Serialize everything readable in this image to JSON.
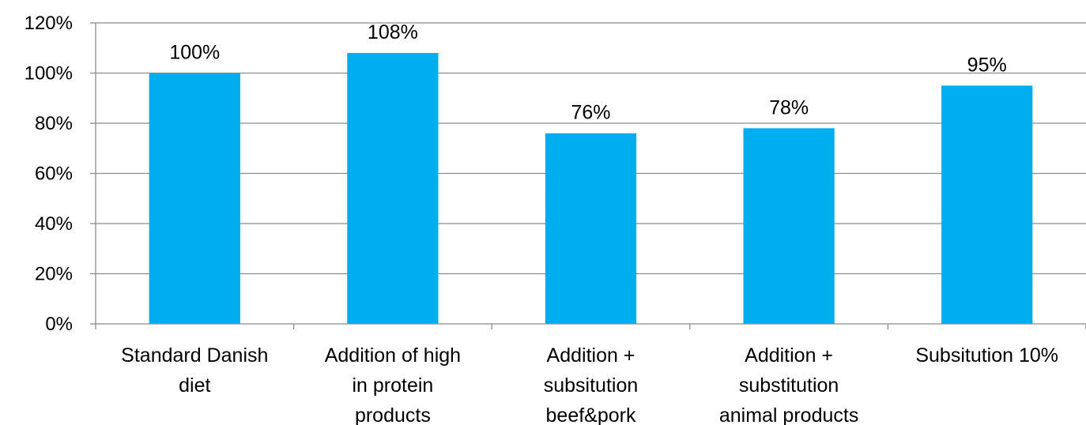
{
  "chart_data": {
    "type": "bar",
    "categories": [
      [
        "Standard Danish",
        "diet"
      ],
      [
        "Addition of high",
        "in protein",
        "products"
      ],
      [
        "Addition +",
        "subsitution",
        "beef&pork"
      ],
      [
        "Addition +",
        "substitution",
        "animal products"
      ],
      [
        "Subsitution 10%"
      ]
    ],
    "values": [
      100,
      108,
      76,
      78,
      95
    ],
    "data_labels": [
      "100%",
      "108%",
      "76%",
      "78%",
      "95%"
    ],
    "y_ticks": [
      "0%",
      "20%",
      "40%",
      "60%",
      "80%",
      "100%",
      "120%"
    ],
    "ylim": [
      0,
      120
    ],
    "grid": true,
    "bar_color": "#00AEEF",
    "title": "",
    "xlabel": "",
    "ylabel": ""
  }
}
